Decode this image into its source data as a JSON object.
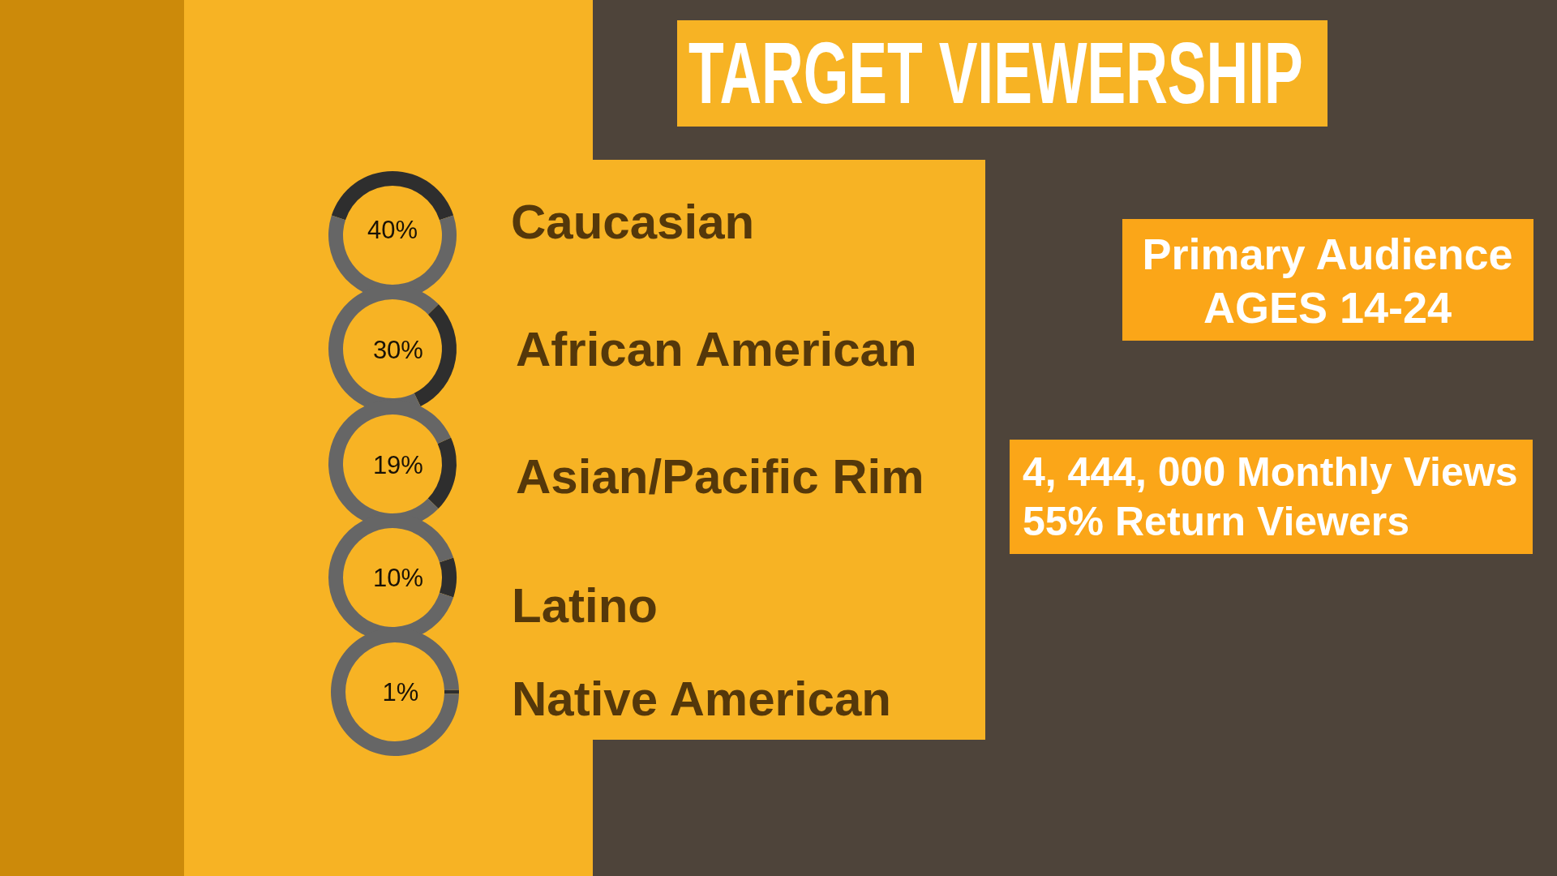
{
  "chart_data": [
    {
      "type": "other",
      "title": "TARGET VIEWERSHIP",
      "annotations": [
        "Primary Audience",
        "AGES 14-24",
        "4, 444, 000 Monthly Views",
        "55% Return Viewers"
      ]
    },
    {
      "type": "donut",
      "categories": [
        "Caucasian",
        null
      ],
      "values": [
        40,
        60
      ],
      "colors": [
        "#2e2e2e",
        "#666666"
      ],
      "value_labels": [
        "40%",
        null
      ]
    },
    {
      "type": "donut",
      "categories": [
        "African American",
        null
      ],
      "values": [
        30,
        70
      ],
      "colors": [
        "#2e2e2e",
        "#666666"
      ],
      "value_labels": [
        "30%",
        null
      ]
    },
    {
      "type": "donut",
      "categories": [
        "Asian/Pacific Rim",
        null
      ],
      "values": [
        19,
        81
      ],
      "colors": [
        "#2e2e2e",
        "#666666"
      ],
      "value_labels": [
        "19%",
        null
      ]
    },
    {
      "type": "donut",
      "categories": [
        "Latino",
        null
      ],
      "values": [
        10,
        90
      ],
      "colors": [
        "#2e2e2e",
        "#666666"
      ],
      "value_labels": [
        "10%",
        null
      ]
    },
    {
      "type": "donut",
      "categories": [
        "Native American",
        null
      ],
      "values": [
        1,
        99
      ],
      "colors": [
        "#2e2e2e",
        "#666666"
      ],
      "value_labels": [
        "1%",
        null
      ]
    }
  ]
}
